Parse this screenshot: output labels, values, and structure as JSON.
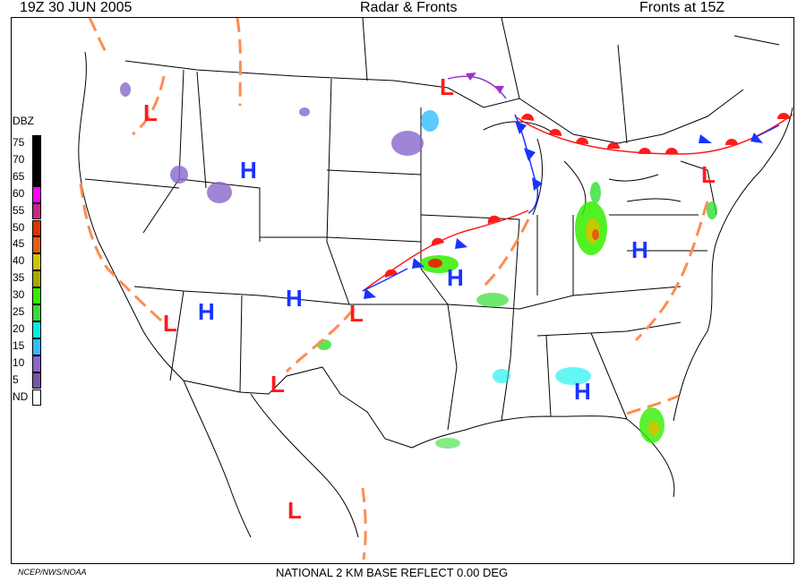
{
  "header": {
    "left": "19Z  30 JUN  2005",
    "center": "Radar & Fronts",
    "right": "Fronts at 15Z"
  },
  "footer": {
    "product": "NATIONAL 2 KM BASE REFLECT 0.00 DEG",
    "credit": "NCEP/NWS/NOAA"
  },
  "legend": {
    "title": "DBZ",
    "entries": [
      {
        "label": "75",
        "color": "#000000"
      },
      {
        "label": "70",
        "color": "#000000"
      },
      {
        "label": "65",
        "color": "#000000"
      },
      {
        "label": "60",
        "color": "#ff00ff"
      },
      {
        "label": "55",
        "color": "#cc2288"
      },
      {
        "label": "50",
        "color": "#dd3300"
      },
      {
        "label": "45",
        "color": "#e06010"
      },
      {
        "label": "40",
        "color": "#c8c800"
      },
      {
        "label": "35",
        "color": "#a8a800"
      },
      {
        "label": "30",
        "color": "#33ee00"
      },
      {
        "label": "25",
        "color": "#33dd33"
      },
      {
        "label": "20",
        "color": "#00eeee"
      },
      {
        "label": "15",
        "color": "#33bbff"
      },
      {
        "label": "10",
        "color": "#8866cc"
      },
      {
        "label": "5",
        "color": "#7755aa"
      },
      {
        "label": "ND",
        "color": "#ffffff"
      }
    ]
  },
  "pressure_systems": [
    {
      "type": "L"
    },
    {
      "type": "H"
    },
    {
      "type": "L"
    },
    {
      "type": "H"
    },
    {
      "type": "H"
    },
    {
      "type": "L"
    },
    {
      "type": "L"
    },
    {
      "type": "H"
    },
    {
      "type": "H"
    },
    {
      "type": "L"
    },
    {
      "type": "H"
    },
    {
      "type": "L"
    }
  ],
  "front_types": [
    "warm",
    "cold",
    "stationary",
    "occluded",
    "trough"
  ],
  "colors": {
    "low": "#ff1a1a",
    "high": "#1a33ff",
    "warm_front": "#ff1a1a",
    "cold_front": "#1a33ff",
    "occluded_front": "#9933cc",
    "trough": "#ff8c50"
  }
}
